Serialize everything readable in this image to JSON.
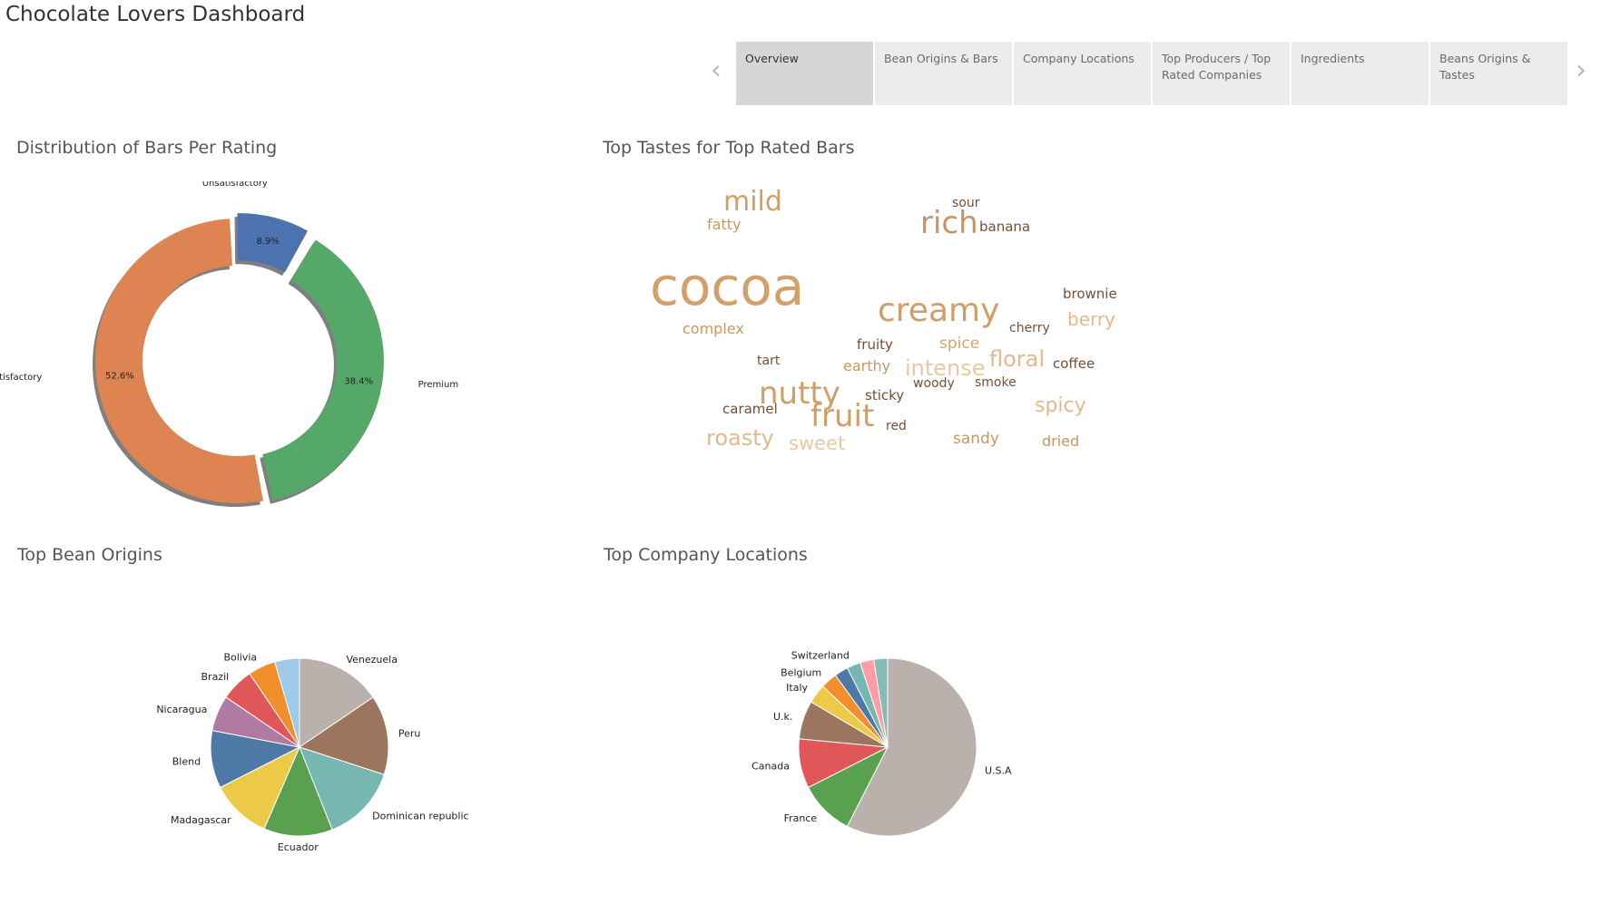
{
  "dashboard": {
    "title": "Chocolate Lovers Dashboard",
    "tabs": [
      {
        "label": "Overview",
        "active": true
      },
      {
        "label": "Bean Origins & Bars",
        "active": false
      },
      {
        "label": "Company Locations",
        "active": false
      },
      {
        "label": "Top Producers / Top Rated Companies",
        "active": false
      },
      {
        "label": "Ingredients",
        "active": false
      },
      {
        "label": "Beans Origins & Tastes",
        "active": false
      }
    ],
    "nav": {
      "prev_icon": "chevron-left-icon",
      "next_icon": "chevron-right-icon"
    }
  },
  "sections": {
    "rating_distribution": "Distribution of Bars Per Rating",
    "top_tastes": "Top Tastes for Top Rated Bars",
    "bean_origins": "Top Bean Origins",
    "company_locations": "Top Company Locations"
  },
  "chart_data": [
    {
      "type": "pie",
      "style": "donut-exploded",
      "title": "Distribution of Bars Per Rating",
      "slices": [
        {
          "label": "Unsatisfactory",
          "value": 8.9,
          "pct_label": "8.9%",
          "color": "#4c72b0"
        },
        {
          "label": "Premium",
          "value": 38.4,
          "pct_label": "38.4%",
          "color": "#55a868"
        },
        {
          "label": "Above Satisfactory",
          "value": 52.6,
          "pct_label": "52.6%",
          "color": "#dd8452"
        }
      ]
    },
    {
      "type": "pie",
      "title": "Top Bean Origins",
      "slices": [
        {
          "label": "Venezuela",
          "value": 15.5,
          "color": "#bab0ac"
        },
        {
          "label": "Peru",
          "value": 14.5,
          "color": "#9c755f"
        },
        {
          "label": "Dominican republic",
          "value": 14,
          "color": "#76b7b2"
        },
        {
          "label": "Ecuador",
          "value": 12.5,
          "color": "#59a14f"
        },
        {
          "label": "Madagascar",
          "value": 11,
          "color": "#edc948"
        },
        {
          "label": "Blend",
          "value": 10.5,
          "color": "#4e79a7"
        },
        {
          "label": "Nicaragua",
          "value": 6.5,
          "color": "#b07aa1"
        },
        {
          "label": "Brazil",
          "value": 6,
          "color": "#e15759"
        },
        {
          "label": "Bolivia",
          "value": 5,
          "color": "#f28e2b"
        },
        {
          "label": "",
          "value": 4.5,
          "color": "#a0cbe8"
        }
      ]
    },
    {
      "type": "pie",
      "title": "Top Company Locations",
      "slices": [
        {
          "label": "U.S.A",
          "value": 57.5,
          "color": "#bab0ac"
        },
        {
          "label": "France",
          "value": 10,
          "color": "#59a14f"
        },
        {
          "label": "Canada",
          "value": 9,
          "color": "#e15759"
        },
        {
          "label": "U.k.",
          "value": 7,
          "color": "#9c755f"
        },
        {
          "label": "Italy",
          "value": 3.5,
          "color": "#edc948"
        },
        {
          "label": "Belgium",
          "value": 3,
          "color": "#f28e2b"
        },
        {
          "label": "",
          "value": 2.5,
          "color": "#4e79a7"
        },
        {
          "label": "Switzerland",
          "value": 2.5,
          "color": "#76b7b2"
        },
        {
          "label": "",
          "value": 2.5,
          "color": "#ff9da7"
        },
        {
          "label": "",
          "value": 2.5,
          "color": "#86bcb6"
        }
      ]
    }
  ],
  "word_cloud": [
    {
      "word": "mild",
      "weight": 30,
      "color": "#d39f69"
    },
    {
      "word": "fatty",
      "weight": 16,
      "color": "#c9975f"
    },
    {
      "word": "sour",
      "weight": 14,
      "color": "#7a4e33"
    },
    {
      "word": "banana",
      "weight": 15,
      "color": "#7a4e33"
    },
    {
      "word": "rich",
      "weight": 34,
      "color": "#c79467"
    },
    {
      "word": "cocoa",
      "weight": 58,
      "color": "#d3a06c"
    },
    {
      "word": "brownie",
      "weight": 15,
      "color": "#7a4e33"
    },
    {
      "word": "berry",
      "weight": 20,
      "color": "#e2b98d"
    },
    {
      "word": "creamy",
      "weight": 36,
      "color": "#d19e65"
    },
    {
      "word": "cherry",
      "weight": 14,
      "color": "#7a4e33"
    },
    {
      "word": "complex",
      "weight": 16,
      "color": "#c9975f"
    },
    {
      "word": "fruity",
      "weight": 15,
      "color": "#7a4e33"
    },
    {
      "word": "spice",
      "weight": 17,
      "color": "#d4a46c"
    },
    {
      "word": "floral",
      "weight": 24,
      "color": "#e2b98d"
    },
    {
      "word": "tart",
      "weight": 14,
      "color": "#7a4e33"
    },
    {
      "word": "earthy",
      "weight": 16,
      "color": "#c9975f"
    },
    {
      "word": "intense",
      "weight": 24,
      "color": "#e8c9a3"
    },
    {
      "word": "coffee",
      "weight": 15,
      "color": "#7a4e33"
    },
    {
      "word": "nutty",
      "weight": 34,
      "color": "#d19e65"
    },
    {
      "word": "woody",
      "weight": 14,
      "color": "#7a4e33"
    },
    {
      "word": "smoke",
      "weight": 14,
      "color": "#7a4e33"
    },
    {
      "word": "sticky",
      "weight": 15,
      "color": "#7a4e33"
    },
    {
      "word": "spicy",
      "weight": 22,
      "color": "#e2b98d"
    },
    {
      "word": "caramel",
      "weight": 15,
      "color": "#7a4e33"
    },
    {
      "word": "fruit",
      "weight": 34,
      "color": "#d19e65"
    },
    {
      "word": "red",
      "weight": 14,
      "color": "#7a4e33"
    },
    {
      "word": "roasty",
      "weight": 24,
      "color": "#e2b98d"
    },
    {
      "word": "sweet",
      "weight": 21,
      "color": "#e8c9a3"
    },
    {
      "word": "sandy",
      "weight": 17,
      "color": "#c9975f"
    },
    {
      "word": "dried",
      "weight": 16,
      "color": "#c9975f"
    }
  ]
}
